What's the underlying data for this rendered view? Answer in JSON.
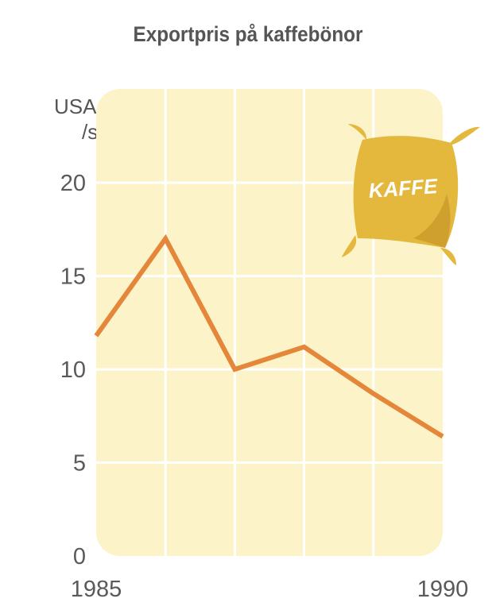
{
  "chart_data": {
    "type": "line",
    "title": "Exportpris på kaffebönor",
    "ylabel_lines": [
      "USA-dollar",
      "/säck"
    ],
    "y_ticks": [
      "0",
      "5",
      "10",
      "15",
      "20"
    ],
    "x_tick_labels": [
      {
        "x": 1985,
        "label": "1985"
      },
      {
        "x": 1990,
        "label": "1990"
      }
    ],
    "xlim": [
      1985,
      1990
    ],
    "ylim": [
      0,
      20
    ],
    "grid": true,
    "x": [
      1985,
      1986,
      1987,
      1988,
      1989,
      1990
    ],
    "values": [
      11.8,
      17,
      10,
      11.2,
      8.7,
      6.4
    ],
    "line_color": "#e4873a",
    "plot_background": "#fdf3c8",
    "illustration": {
      "name": "coffee-sack-icon",
      "text": "KAFFE",
      "color": "#e3b83c"
    }
  }
}
